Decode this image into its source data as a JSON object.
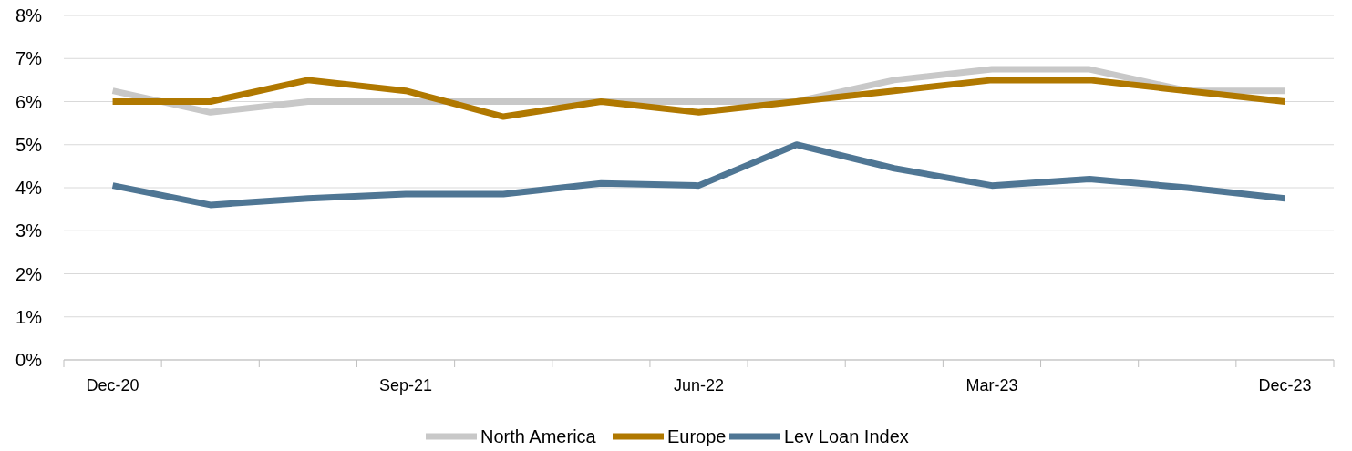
{
  "chart_data": {
    "type": "line",
    "categories": [
      "Dec-20",
      null,
      null,
      "Sep-21",
      null,
      null,
      "Jun-22",
      null,
      null,
      "Mar-23",
      null,
      null,
      "Dec-23"
    ],
    "series": [
      {
        "name": "North America",
        "color": "#c8c8c8",
        "values": [
          6.25,
          5.75,
          6,
          6,
          6,
          6,
          6,
          6,
          6.5,
          6.75,
          6.75,
          6.25,
          6.25
        ]
      },
      {
        "name": "Europe",
        "color": "#b07800",
        "values": [
          6,
          6,
          6.5,
          6.25,
          5.65,
          6,
          5.75,
          6,
          6.25,
          6.5,
          6.5,
          6.25,
          6
        ]
      },
      {
        "name": "Lev Loan Index",
        "color": "#4f7694",
        "values": [
          4.05,
          3.6,
          3.75,
          3.85,
          3.85,
          4.1,
          4.05,
          5,
          4.45,
          4.05,
          4.2,
          4,
          3.75
        ]
      }
    ],
    "ylim": [
      0,
      8
    ],
    "yticks": [
      {
        "value": 0,
        "label": "0%"
      },
      {
        "value": 1,
        "label": "1%"
      },
      {
        "value": 2,
        "label": "2%"
      },
      {
        "value": 3,
        "label": "3%"
      },
      {
        "value": 4,
        "label": "4%"
      },
      {
        "value": 5,
        "label": "5%"
      },
      {
        "value": 6,
        "label": "6%"
      },
      {
        "value": 7,
        "label": "7%"
      },
      {
        "value": 8,
        "label": "8%"
      }
    ],
    "grid": "y",
    "legend": "bottom",
    "marker": "none",
    "line_style": "solid"
  }
}
